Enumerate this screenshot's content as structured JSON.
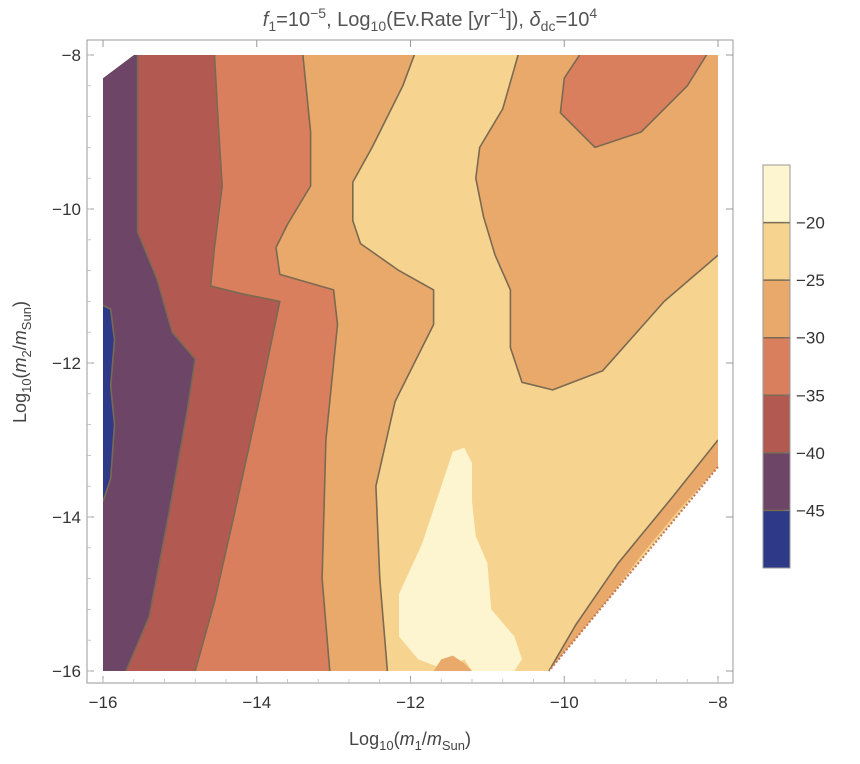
{
  "chart_data": {
    "type": "contour",
    "title_parts": {
      "f": "f",
      "f_sub": "1",
      "f_eq": "=10",
      "f_exp": "−5",
      "log_prefix": ", Log",
      "log_sub": "10",
      "log_body": "(Ev.Rate [yr",
      "log_exp": "−1",
      "log_close": "]), ",
      "delta": "δ",
      "delta_sub": "dc",
      "delta_eq": "=10",
      "delta_exp": "4"
    },
    "xlabel_parts": {
      "prefix": "Log",
      "sub": "10",
      "open": "(",
      "m": "m",
      "m_sub": "1",
      "slash": "/",
      "ms": "m",
      "ms_sub": "Sun",
      "close": ")"
    },
    "ylabel_parts": {
      "prefix": "Log",
      "sub": "10",
      "open": "(",
      "m": "m",
      "m_sub": "2",
      "slash": "/",
      "ms": "m",
      "ms_sub": "Sun",
      "close": ")"
    },
    "xlim": [
      -16,
      -8
    ],
    "ylim": [
      -16,
      -8
    ],
    "x_ticks": [
      "−16",
      "−14",
      "−12",
      "−10",
      "−8"
    ],
    "x_tick_values": [
      -16,
      -14,
      -12,
      -10,
      -8
    ],
    "y_ticks": [
      "−8",
      "−10",
      "−12",
      "−14",
      "−16"
    ],
    "y_tick_values": [
      -8,
      -10,
      -12,
      -14,
      -16
    ],
    "contour_levels": [
      -45,
      -40,
      -35,
      -30,
      -25,
      -20
    ],
    "colorbar_labels": [
      "−20",
      "−25",
      "−30",
      "−35",
      "−40",
      "−45"
    ],
    "band_colors": [
      "#2e3a87",
      "#6c4567",
      "#b25a52",
      "#d97f5e",
      "#e9a96a",
      "#f6d48f",
      "#fdf5cf"
    ],
    "line_color": "#7a6a52",
    "boundary_points": [
      {
        "x": -16.0,
        "y": -8.3
      },
      {
        "x": -15.6,
        "y": -8.0
      },
      {
        "x": -8.0,
        "y": -8.0
      },
      {
        "x": -8.0,
        "y": -13.35
      },
      {
        "x": -10.2,
        "y": -16.0
      },
      {
        "x": -16.0,
        "y": -16.0
      }
    ],
    "boundaries": [
      [
        {
          "x": -16.0,
          "y": -11.25
        },
        {
          "x": -15.9,
          "y": -11.3
        },
        {
          "x": -15.85,
          "y": -11.7
        },
        {
          "x": -15.9,
          "y": -12.3
        },
        {
          "x": -15.85,
          "y": -12.8
        },
        {
          "x": -15.9,
          "y": -13.5
        },
        {
          "x": -16.0,
          "y": -13.8
        }
      ],
      [
        {
          "x": -15.55,
          "y": -8.0
        },
        {
          "x": -15.55,
          "y": -10.3
        },
        {
          "x": -15.3,
          "y": -10.9
        },
        {
          "x": -15.1,
          "y": -11.6
        },
        {
          "x": -14.8,
          "y": -11.95
        },
        {
          "x": -14.9,
          "y": -12.6
        },
        {
          "x": -15.15,
          "y": -14.0
        },
        {
          "x": -15.4,
          "y": -15.3
        },
        {
          "x": -15.7,
          "y": -16.0
        }
      ],
      [
        {
          "x": -14.55,
          "y": -8.0
        },
        {
          "x": -14.5,
          "y": -8.9
        },
        {
          "x": -14.45,
          "y": -9.7
        },
        {
          "x": -14.55,
          "y": -10.5
        },
        {
          "x": -14.6,
          "y": -11.0
        },
        {
          "x": -14.2,
          "y": -11.1
        },
        {
          "x": -13.7,
          "y": -11.2
        },
        {
          "x": -13.95,
          "y": -12.4
        },
        {
          "x": -14.3,
          "y": -14.0
        },
        {
          "x": -14.55,
          "y": -15.1
        },
        {
          "x": -14.8,
          "y": -16.0
        }
      ],
      [
        {
          "x": -13.4,
          "y": -8.0
        },
        {
          "x": -13.3,
          "y": -9.0
        },
        {
          "x": -13.3,
          "y": -9.7
        },
        {
          "x": -13.6,
          "y": -10.2
        },
        {
          "x": -13.75,
          "y": -10.5
        },
        {
          "x": -13.7,
          "y": -10.85
        },
        {
          "x": -13.0,
          "y": -11.05
        },
        {
          "x": -12.95,
          "y": -11.5
        },
        {
          "x": -13.1,
          "y": -13.0
        },
        {
          "x": -13.15,
          "y": -14.8
        },
        {
          "x": -13.05,
          "y": -16.0
        }
      ],
      [
        {
          "x": -11.95,
          "y": -8.0
        },
        {
          "x": -12.1,
          "y": -8.4
        },
        {
          "x": -12.5,
          "y": -9.2
        },
        {
          "x": -12.75,
          "y": -9.65
        },
        {
          "x": -12.75,
          "y": -10.15
        },
        {
          "x": -12.65,
          "y": -10.45
        },
        {
          "x": -12.15,
          "y": -10.8
        },
        {
          "x": -11.7,
          "y": -11.05
        },
        {
          "x": -11.7,
          "y": -11.5
        },
        {
          "x": -12.2,
          "y": -12.5
        },
        {
          "x": -12.45,
          "y": -13.6
        },
        {
          "x": -12.4,
          "y": -14.8
        },
        {
          "x": -12.3,
          "y": -16.0
        }
      ],
      [
        {
          "x": -10.6,
          "y": -8.0
        },
        {
          "x": -10.8,
          "y": -8.7
        },
        {
          "x": -11.1,
          "y": -9.2
        },
        {
          "x": -11.15,
          "y": -9.6
        },
        {
          "x": -11.05,
          "y": -10.1
        },
        {
          "x": -10.9,
          "y": -10.6
        },
        {
          "x": -10.7,
          "y": -11.05
        },
        {
          "x": -10.7,
          "y": -11.8
        },
        {
          "x": -10.55,
          "y": -12.25
        },
        {
          "x": -10.15,
          "y": -12.35
        },
        {
          "x": -9.5,
          "y": -12.1
        },
        {
          "x": -8.7,
          "y": -11.2
        },
        {
          "x": -8.0,
          "y": -10.6
        }
      ],
      [
        {
          "x": -8.0,
          "y": -13.0
        },
        {
          "x": -8.6,
          "y": -13.75
        },
        {
          "x": -9.3,
          "y": -14.6
        },
        {
          "x": -9.85,
          "y": -15.4
        },
        {
          "x": -10.2,
          "y": -16.0
        }
      ],
      [
        {
          "x": -9.8,
          "y": -8.0
        },
        {
          "x": -10.0,
          "y": -8.3
        },
        {
          "x": -10.05,
          "y": -8.75
        },
        {
          "x": -9.6,
          "y": -9.2
        },
        {
          "x": -9.0,
          "y": -9.0
        },
        {
          "x": -8.4,
          "y": -8.4
        },
        {
          "x": -8.15,
          "y": -8.0
        }
      ]
    ],
    "regions": [
      {
        "fill": "#6c4567",
        "points": [
          {
            "x": -16.0,
            "y": -8.3
          },
          {
            "x": -15.6,
            "y": -8.0
          },
          {
            "x": -15.55,
            "y": -8.0
          },
          {
            "x": -15.55,
            "y": -10.3
          },
          {
            "x": -15.3,
            "y": -10.9
          },
          {
            "x": -15.1,
            "y": -11.6
          },
          {
            "x": -14.8,
            "y": -11.95
          },
          {
            "x": -14.9,
            "y": -12.6
          },
          {
            "x": -15.15,
            "y": -14.0
          },
          {
            "x": -15.4,
            "y": -15.3
          },
          {
            "x": -15.7,
            "y": -16.0
          },
          {
            "x": -16.0,
            "y": -16.0
          }
        ]
      },
      {
        "fill": "#2e3a87",
        "points": [
          {
            "x": -16.0,
            "y": -11.25
          },
          {
            "x": -15.9,
            "y": -11.3
          },
          {
            "x": -15.85,
            "y": -11.7
          },
          {
            "x": -15.9,
            "y": -12.3
          },
          {
            "x": -15.85,
            "y": -12.8
          },
          {
            "x": -15.9,
            "y": -13.5
          },
          {
            "x": -16.0,
            "y": -13.8
          }
        ]
      },
      {
        "fill": "#b25a52",
        "points": [
          {
            "x": -15.55,
            "y": -8.0
          },
          {
            "x": -14.55,
            "y": -8.0
          },
          {
            "x": -14.5,
            "y": -8.9
          },
          {
            "x": -14.45,
            "y": -9.7
          },
          {
            "x": -14.55,
            "y": -10.5
          },
          {
            "x": -14.6,
            "y": -11.0
          },
          {
            "x": -14.2,
            "y": -11.1
          },
          {
            "x": -13.7,
            "y": -11.2
          },
          {
            "x": -13.95,
            "y": -12.4
          },
          {
            "x": -14.3,
            "y": -14.0
          },
          {
            "x": -14.55,
            "y": -15.1
          },
          {
            "x": -14.8,
            "y": -16.0
          },
          {
            "x": -15.7,
            "y": -16.0
          },
          {
            "x": -15.4,
            "y": -15.3
          },
          {
            "x": -15.15,
            "y": -14.0
          },
          {
            "x": -14.9,
            "y": -12.6
          },
          {
            "x": -14.8,
            "y": -11.95
          },
          {
            "x": -15.1,
            "y": -11.6
          },
          {
            "x": -15.3,
            "y": -10.9
          },
          {
            "x": -15.55,
            "y": -10.3
          }
        ]
      },
      {
        "fill": "#d97f5e",
        "points": [
          {
            "x": -14.55,
            "y": -8.0
          },
          {
            "x": -13.4,
            "y": -8.0
          },
          {
            "x": -13.3,
            "y": -9.0
          },
          {
            "x": -13.3,
            "y": -9.7
          },
          {
            "x": -13.6,
            "y": -10.2
          },
          {
            "x": -13.75,
            "y": -10.5
          },
          {
            "x": -13.7,
            "y": -10.85
          },
          {
            "x": -13.0,
            "y": -11.05
          },
          {
            "x": -12.95,
            "y": -11.5
          },
          {
            "x": -13.1,
            "y": -13.0
          },
          {
            "x": -13.15,
            "y": -14.8
          },
          {
            "x": -13.05,
            "y": -16.0
          },
          {
            "x": -14.8,
            "y": -16.0
          },
          {
            "x": -14.55,
            "y": -15.1
          },
          {
            "x": -14.3,
            "y": -14.0
          },
          {
            "x": -13.95,
            "y": -12.4
          },
          {
            "x": -13.7,
            "y": -11.2
          },
          {
            "x": -14.2,
            "y": -11.1
          },
          {
            "x": -14.6,
            "y": -11.0
          },
          {
            "x": -14.55,
            "y": -10.5
          },
          {
            "x": -14.45,
            "y": -9.7
          },
          {
            "x": -14.5,
            "y": -8.9
          }
        ]
      },
      {
        "fill": "#e9a96a",
        "points": [
          {
            "x": -13.4,
            "y": -8.0
          },
          {
            "x": -11.95,
            "y": -8.0
          },
          {
            "x": -12.1,
            "y": -8.4
          },
          {
            "x": -12.5,
            "y": -9.2
          },
          {
            "x": -12.75,
            "y": -9.65
          },
          {
            "x": -12.75,
            "y": -10.15
          },
          {
            "x": -12.65,
            "y": -10.45
          },
          {
            "x": -12.15,
            "y": -10.8
          },
          {
            "x": -11.7,
            "y": -11.05
          },
          {
            "x": -11.7,
            "y": -11.5
          },
          {
            "x": -12.2,
            "y": -12.5
          },
          {
            "x": -12.45,
            "y": -13.6
          },
          {
            "x": -12.4,
            "y": -14.8
          },
          {
            "x": -12.3,
            "y": -16.0
          },
          {
            "x": -13.05,
            "y": -16.0
          },
          {
            "x": -13.15,
            "y": -14.8
          },
          {
            "x": -13.1,
            "y": -13.0
          },
          {
            "x": -12.95,
            "y": -11.5
          },
          {
            "x": -13.0,
            "y": -11.05
          },
          {
            "x": -13.7,
            "y": -10.85
          },
          {
            "x": -13.75,
            "y": -10.5
          },
          {
            "x": -13.6,
            "y": -10.2
          },
          {
            "x": -13.3,
            "y": -9.7
          },
          {
            "x": -13.3,
            "y": -9.0
          }
        ]
      },
      {
        "fill": "#e9a96a",
        "points": [
          {
            "x": -10.6,
            "y": -8.0
          },
          {
            "x": -8.0,
            "y": -8.0
          },
          {
            "x": -8.0,
            "y": -10.6
          },
          {
            "x": -8.7,
            "y": -11.2
          },
          {
            "x": -9.5,
            "y": -12.1
          },
          {
            "x": -10.15,
            "y": -12.35
          },
          {
            "x": -10.55,
            "y": -12.25
          },
          {
            "x": -10.7,
            "y": -11.8
          },
          {
            "x": -10.7,
            "y": -11.05
          },
          {
            "x": -10.9,
            "y": -10.6
          },
          {
            "x": -11.05,
            "y": -10.1
          },
          {
            "x": -11.15,
            "y": -9.6
          },
          {
            "x": -11.1,
            "y": -9.2
          },
          {
            "x": -10.8,
            "y": -8.7
          }
        ]
      },
      {
        "fill": "#e9a96a",
        "points": [
          {
            "x": -8.0,
            "y": -13.0
          },
          {
            "x": -8.6,
            "y": -13.75
          },
          {
            "x": -9.3,
            "y": -14.6
          },
          {
            "x": -9.85,
            "y": -15.4
          },
          {
            "x": -10.2,
            "y": -16.0
          },
          {
            "x": -10.1,
            "y": -16.0
          },
          {
            "x": -9.6,
            "y": -15.3
          },
          {
            "x": -9.0,
            "y": -14.5
          },
          {
            "x": -8.5,
            "y": -13.9
          },
          {
            "x": -8.0,
            "y": -13.35
          }
        ]
      },
      {
        "fill": "#d97f5e",
        "points": [
          {
            "x": -9.8,
            "y": -8.0
          },
          {
            "x": -10.0,
            "y": -8.3
          },
          {
            "x": -10.05,
            "y": -8.75
          },
          {
            "x": -9.6,
            "y": -9.2
          },
          {
            "x": -9.0,
            "y": -9.0
          },
          {
            "x": -8.4,
            "y": -8.4
          },
          {
            "x": -8.15,
            "y": -8.0
          }
        ]
      },
      {
        "fill": "#fdf5cf",
        "points": [
          {
            "x": -11.5,
            "y": -16.0
          },
          {
            "x": -11.9,
            "y": -15.85
          },
          {
            "x": -12.15,
            "y": -15.55
          },
          {
            "x": -12.15,
            "y": -15.0
          },
          {
            "x": -11.85,
            "y": -14.35
          },
          {
            "x": -11.6,
            "y": -13.6
          },
          {
            "x": -11.45,
            "y": -13.15
          },
          {
            "x": -11.3,
            "y": -13.1
          },
          {
            "x": -11.2,
            "y": -13.3
          },
          {
            "x": -11.2,
            "y": -13.8
          },
          {
            "x": -11.15,
            "y": -14.25
          },
          {
            "x": -11.0,
            "y": -14.6
          },
          {
            "x": -10.95,
            "y": -15.2
          },
          {
            "x": -10.65,
            "y": -15.55
          },
          {
            "x": -10.55,
            "y": -15.85
          },
          {
            "x": -10.65,
            "y": -16.0
          },
          {
            "x": -11.2,
            "y": -16.0
          },
          {
            "x": -11.3,
            "y": -15.85
          },
          {
            "x": -11.4,
            "y": -15.9
          }
        ]
      },
      {
        "fill": "#e9a96a",
        "points": [
          {
            "x": -11.7,
            "y": -16.0
          },
          {
            "x": -11.6,
            "y": -15.85
          },
          {
            "x": -11.45,
            "y": -15.8
          },
          {
            "x": -11.3,
            "y": -15.9
          },
          {
            "x": -11.2,
            "y": -16.0
          }
        ]
      }
    ],
    "dotted_boundary": true,
    "dotted_edge": [
      {
        "x": -8.0,
        "y": -13.35
      },
      {
        "x": -10.2,
        "y": -16.0
      }
    ]
  }
}
